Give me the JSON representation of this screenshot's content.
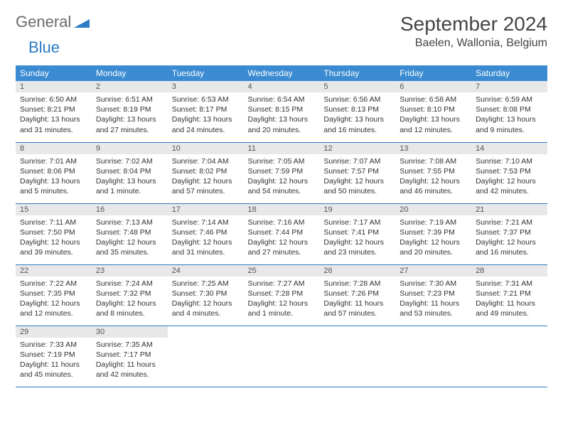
{
  "logo": {
    "part1": "General",
    "part2": "Blue"
  },
  "title": "September 2024",
  "location": "Baelen, Wallonia, Belgium",
  "colors": {
    "header_bg": "#3a8bd1",
    "accent": "#2b7cc4",
    "daynum_bg": "#e8e8e8",
    "text": "#333333"
  },
  "weekdays": [
    "Sunday",
    "Monday",
    "Tuesday",
    "Wednesday",
    "Thursday",
    "Friday",
    "Saturday"
  ],
  "days": [
    {
      "n": 1,
      "sunrise": "6:50 AM",
      "sunset": "8:21 PM",
      "daylight": "13 hours and 31 minutes."
    },
    {
      "n": 2,
      "sunrise": "6:51 AM",
      "sunset": "8:19 PM",
      "daylight": "13 hours and 27 minutes."
    },
    {
      "n": 3,
      "sunrise": "6:53 AM",
      "sunset": "8:17 PM",
      "daylight": "13 hours and 24 minutes."
    },
    {
      "n": 4,
      "sunrise": "6:54 AM",
      "sunset": "8:15 PM",
      "daylight": "13 hours and 20 minutes."
    },
    {
      "n": 5,
      "sunrise": "6:56 AM",
      "sunset": "8:13 PM",
      "daylight": "13 hours and 16 minutes."
    },
    {
      "n": 6,
      "sunrise": "6:58 AM",
      "sunset": "8:10 PM",
      "daylight": "13 hours and 12 minutes."
    },
    {
      "n": 7,
      "sunrise": "6:59 AM",
      "sunset": "8:08 PM",
      "daylight": "13 hours and 9 minutes."
    },
    {
      "n": 8,
      "sunrise": "7:01 AM",
      "sunset": "8:06 PM",
      "daylight": "13 hours and 5 minutes."
    },
    {
      "n": 9,
      "sunrise": "7:02 AM",
      "sunset": "8:04 PM",
      "daylight": "13 hours and 1 minute."
    },
    {
      "n": 10,
      "sunrise": "7:04 AM",
      "sunset": "8:02 PM",
      "daylight": "12 hours and 57 minutes."
    },
    {
      "n": 11,
      "sunrise": "7:05 AM",
      "sunset": "7:59 PM",
      "daylight": "12 hours and 54 minutes."
    },
    {
      "n": 12,
      "sunrise": "7:07 AM",
      "sunset": "7:57 PM",
      "daylight": "12 hours and 50 minutes."
    },
    {
      "n": 13,
      "sunrise": "7:08 AM",
      "sunset": "7:55 PM",
      "daylight": "12 hours and 46 minutes."
    },
    {
      "n": 14,
      "sunrise": "7:10 AM",
      "sunset": "7:53 PM",
      "daylight": "12 hours and 42 minutes."
    },
    {
      "n": 15,
      "sunrise": "7:11 AM",
      "sunset": "7:50 PM",
      "daylight": "12 hours and 39 minutes."
    },
    {
      "n": 16,
      "sunrise": "7:13 AM",
      "sunset": "7:48 PM",
      "daylight": "12 hours and 35 minutes."
    },
    {
      "n": 17,
      "sunrise": "7:14 AM",
      "sunset": "7:46 PM",
      "daylight": "12 hours and 31 minutes."
    },
    {
      "n": 18,
      "sunrise": "7:16 AM",
      "sunset": "7:44 PM",
      "daylight": "12 hours and 27 minutes."
    },
    {
      "n": 19,
      "sunrise": "7:17 AM",
      "sunset": "7:41 PM",
      "daylight": "12 hours and 23 minutes."
    },
    {
      "n": 20,
      "sunrise": "7:19 AM",
      "sunset": "7:39 PM",
      "daylight": "12 hours and 20 minutes."
    },
    {
      "n": 21,
      "sunrise": "7:21 AM",
      "sunset": "7:37 PM",
      "daylight": "12 hours and 16 minutes."
    },
    {
      "n": 22,
      "sunrise": "7:22 AM",
      "sunset": "7:35 PM",
      "daylight": "12 hours and 12 minutes."
    },
    {
      "n": 23,
      "sunrise": "7:24 AM",
      "sunset": "7:32 PM",
      "daylight": "12 hours and 8 minutes."
    },
    {
      "n": 24,
      "sunrise": "7:25 AM",
      "sunset": "7:30 PM",
      "daylight": "12 hours and 4 minutes."
    },
    {
      "n": 25,
      "sunrise": "7:27 AM",
      "sunset": "7:28 PM",
      "daylight": "12 hours and 1 minute."
    },
    {
      "n": 26,
      "sunrise": "7:28 AM",
      "sunset": "7:26 PM",
      "daylight": "11 hours and 57 minutes."
    },
    {
      "n": 27,
      "sunrise": "7:30 AM",
      "sunset": "7:23 PM",
      "daylight": "11 hours and 53 minutes."
    },
    {
      "n": 28,
      "sunrise": "7:31 AM",
      "sunset": "7:21 PM",
      "daylight": "11 hours and 49 minutes."
    },
    {
      "n": 29,
      "sunrise": "7:33 AM",
      "sunset": "7:19 PM",
      "daylight": "11 hours and 45 minutes."
    },
    {
      "n": 30,
      "sunrise": "7:35 AM",
      "sunset": "7:17 PM",
      "daylight": "11 hours and 42 minutes."
    }
  ],
  "labels": {
    "sunrise": "Sunrise:",
    "sunset": "Sunset:",
    "daylight": "Daylight:"
  }
}
